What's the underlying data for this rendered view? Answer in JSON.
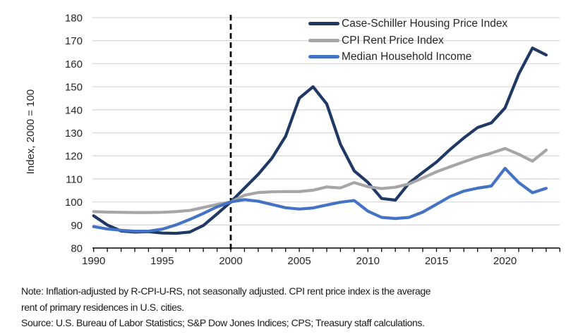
{
  "chart_data": {
    "type": "line",
    "title": "",
    "xlabel": "",
    "ylabel": "Index, 2000 = 100",
    "ylim": [
      80,
      180
    ],
    "ytick_step": 10,
    "x_range": [
      1990,
      2024
    ],
    "xtick_labels": [
      1990,
      1995,
      2000,
      2005,
      2010,
      2015,
      2020
    ],
    "reference_line_year": 2000,
    "grid": "horizontal",
    "legend_position": "top-right-inside",
    "x_years": [
      1990,
      1991,
      1992,
      1993,
      1994,
      1995,
      1996,
      1997,
      1998,
      1999,
      2000,
      2001,
      2002,
      2003,
      2004,
      2005,
      2006,
      2007,
      2008,
      2009,
      2010,
      2011,
      2012,
      2013,
      2014,
      2015,
      2016,
      2017,
      2018,
      2019,
      2020,
      2021,
      2022,
      2023
    ],
    "series": [
      {
        "name": "Case-Schiller Housing Price Index",
        "color": "#1F3864",
        "values": [
          94.0,
          90.0,
          87.4,
          86.9,
          87.1,
          86.5,
          86.4,
          86.9,
          89.8,
          94.8,
          100,
          106,
          112,
          119,
          128.5,
          145,
          150,
          142.5,
          125,
          113.5,
          108.5,
          101.5,
          100.8,
          108.2,
          112.8,
          117.3,
          122.8,
          127.8,
          132.3,
          134.3,
          140.8,
          155.5,
          166.8,
          163.8
        ]
      },
      {
        "name": "CPI Rent Price Index",
        "color": "#A6A6A6",
        "values": [
          95.8,
          95.6,
          95.5,
          95.4,
          95.4,
          95.5,
          95.8,
          96.3,
          97.6,
          98.9,
          100,
          102.9,
          104.1,
          104.4,
          104.5,
          104.5,
          105.1,
          106.5,
          106.1,
          108.4,
          106.6,
          105.8,
          106.4,
          107.8,
          110.4,
          113.1,
          115.3,
          117.4,
          119.5,
          121.2,
          123.2,
          120.7,
          117.7,
          122.5
        ]
      },
      {
        "name": "Median Household Income",
        "color": "#4472C4",
        "values": [
          89.3,
          88.3,
          87.7,
          87.3,
          87.3,
          88.2,
          90.0,
          92.4,
          95.0,
          97.9,
          100,
          101.0,
          100.3,
          98.9,
          97.5,
          96.9,
          97.4,
          98.7,
          99.9,
          100.6,
          96.0,
          93.3,
          92.8,
          93.3,
          95.6,
          99.0,
          102.4,
          104.7,
          106.0,
          106.9,
          114.6,
          108.4,
          104.0,
          105.9
        ]
      }
    ]
  },
  "note": {
    "line1": "Note: Inflation-adjusted by R-CPI-U-RS, not seasonally adjusted. CPI rent price index is the average",
    "line2": "rent of primary residences in U.S. cities.",
    "source": "Source: U.S. Bureau of Labor Statistics; S&P Dow Jones Indices; CPS; Treasury staff calculations."
  },
  "colors": {
    "gridline": "#D9D9D9",
    "axis": "#000000",
    "reference_line": "#000000",
    "tick_label": "#262626"
  }
}
